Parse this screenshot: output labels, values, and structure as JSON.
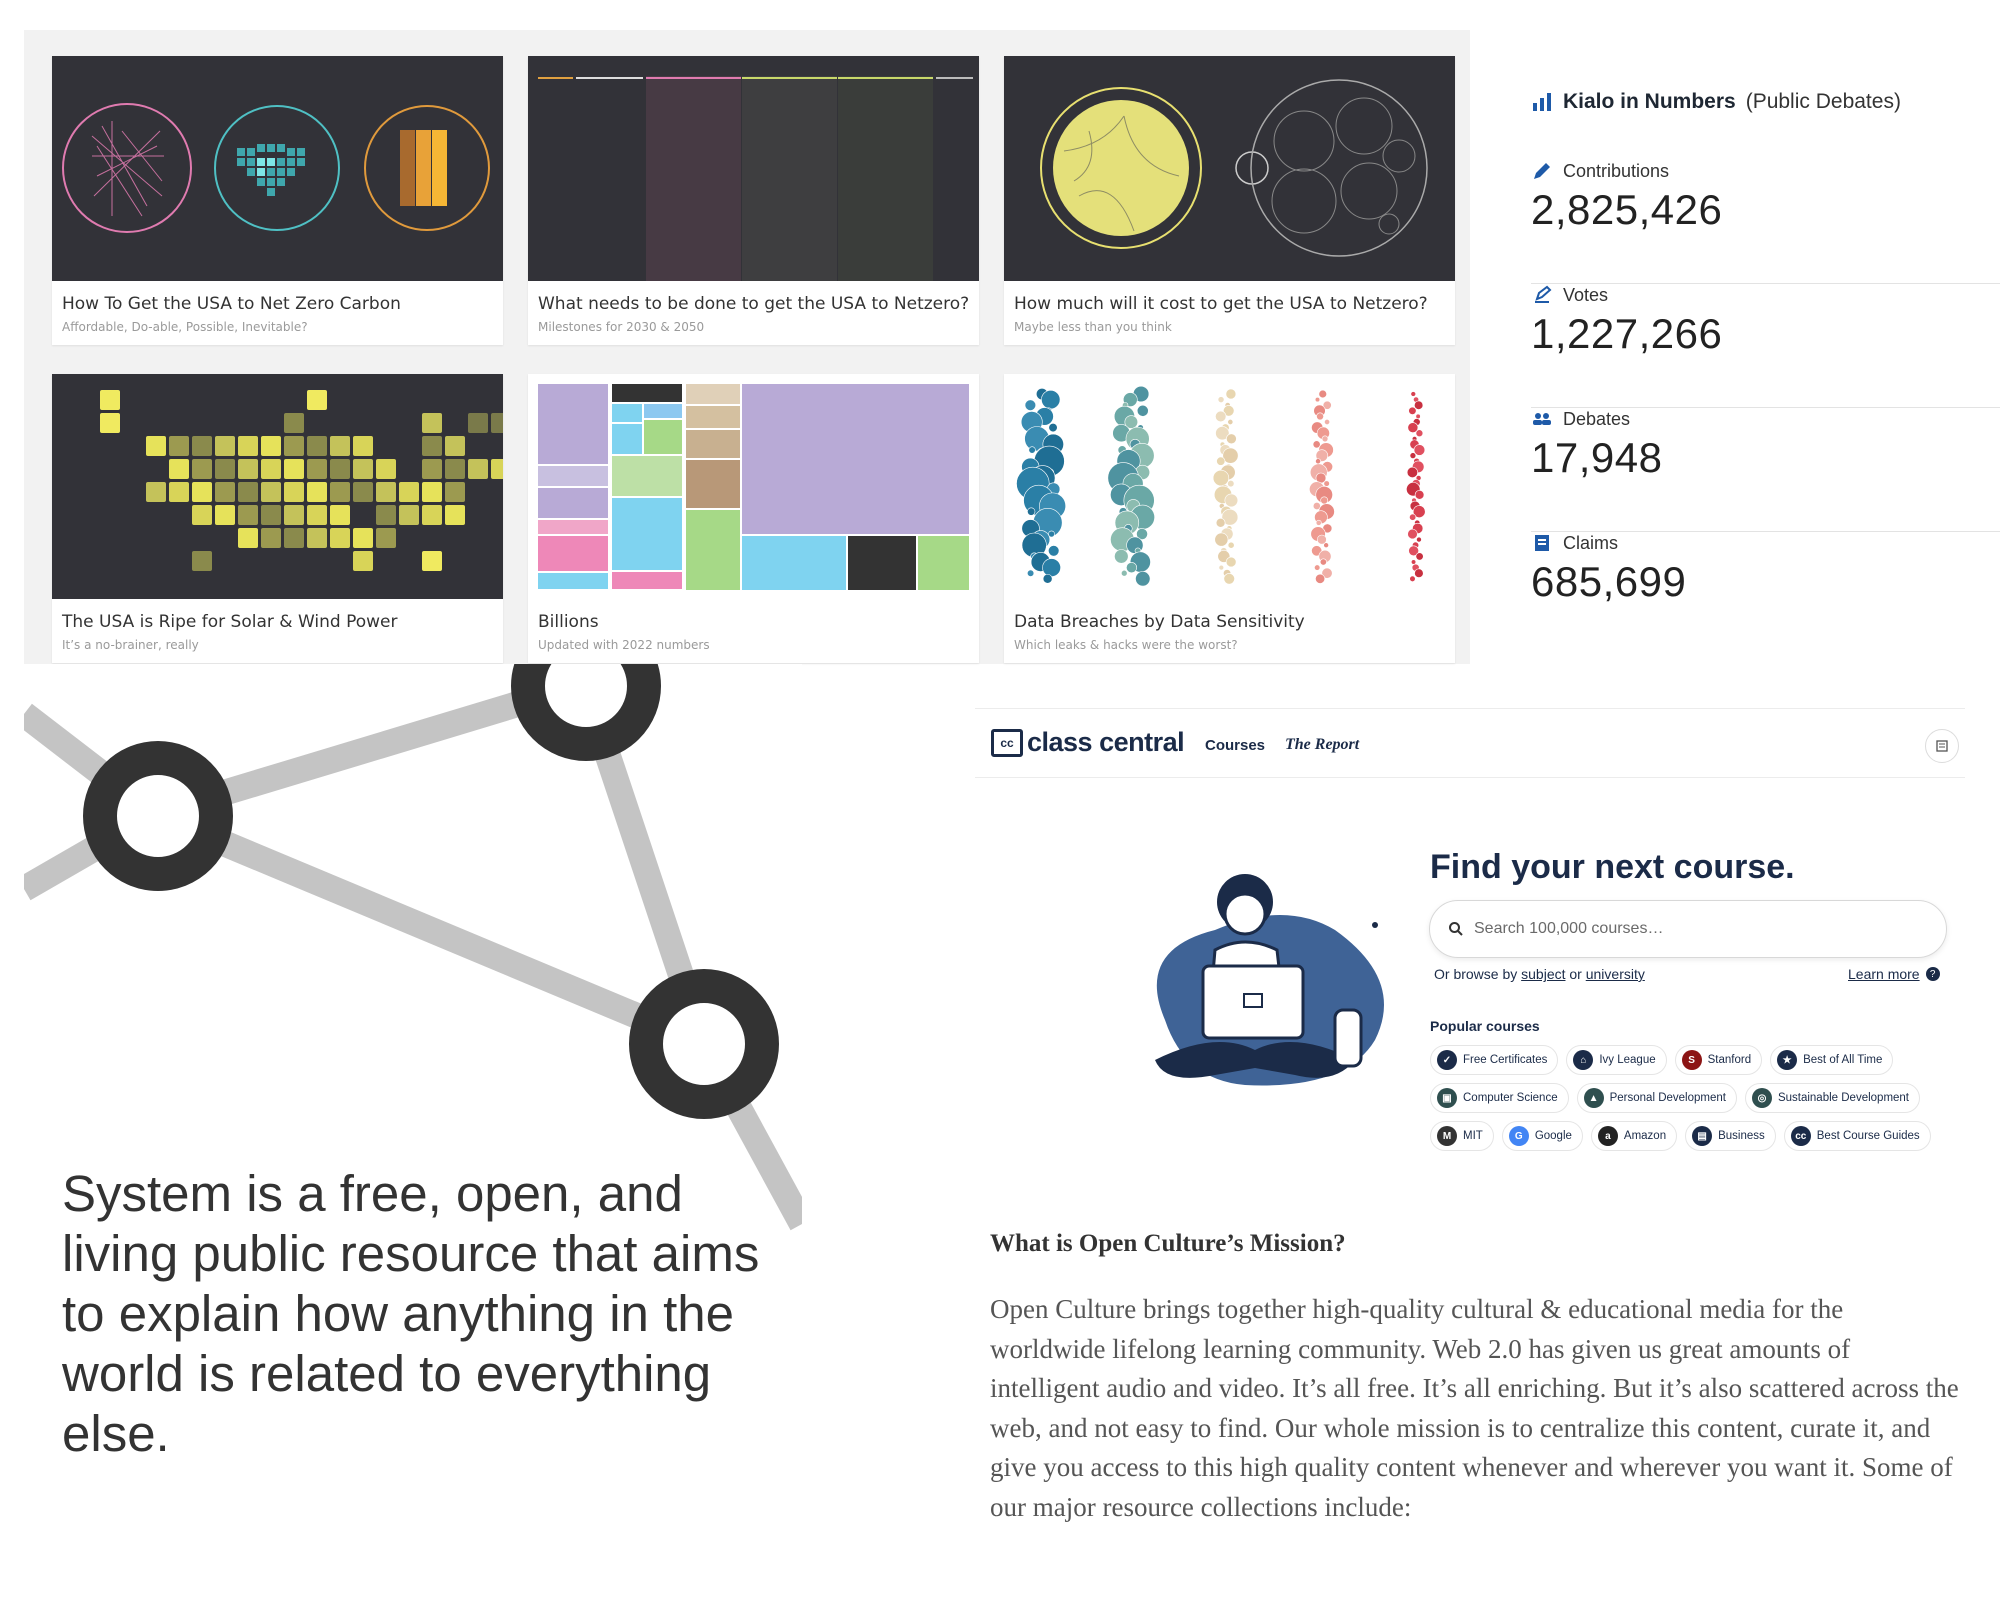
{
  "gallery": {
    "cards": [
      {
        "title": "How To Get the USA to Net Zero Carbon",
        "subtitle": "Affordable, Do-able, Possible, Inevitable?"
      },
      {
        "title": "What needs to be done to get the USA to Netzero?",
        "subtitle": "Milestones for 2030 & 2050"
      },
      {
        "title": "How much will it cost to get the USA to Netzero?",
        "subtitle": "Maybe less than you think"
      },
      {
        "title": "The USA is Ripe for Solar & Wind Power",
        "subtitle": "It’s a no-brainer, really"
      },
      {
        "title": "Billions",
        "subtitle": "Updated with 2022 numbers"
      },
      {
        "title": "Data Breaches by Data Sensitivity",
        "subtitle": "Which leaks & hacks were the worst?"
      }
    ]
  },
  "kialo": {
    "title": "Kialo in Numbers",
    "subtitle": "(Public Debates)",
    "icon": "bar-chart-icon",
    "stats": [
      {
        "label": "Contributions",
        "value": "2,825,426",
        "icon": "pencil-icon"
      },
      {
        "label": "Votes",
        "value": "1,227,266",
        "icon": "vote-icon"
      },
      {
        "label": "Debates",
        "value": "17,948",
        "icon": "people-icon"
      },
      {
        "label": "Claims",
        "value": "685,699",
        "icon": "document-icon"
      }
    ],
    "accent": "#1e5aa8"
  },
  "system": {
    "tagline": "System is a free, open, and living public resource that aims to explain how anything in the world is related to everything else."
  },
  "classcentral": {
    "logo_box": "cc",
    "logo_text": "class central",
    "nav": {
      "courses": "Courses",
      "report": "The Report"
    },
    "heading": "Find your next course.",
    "search_placeholder": "Search 100,000 courses…",
    "browse_prefix": "Or browse by ",
    "browse_link1": "subject",
    "browse_mid": " or ",
    "browse_link2": "university",
    "learn_more": "Learn more",
    "popular_label": "Popular courses",
    "chip_rows": [
      [
        {
          "label": "Free Certificates",
          "icon": "certificate-icon",
          "color": "#1b2b48"
        },
        {
          "label": "Ivy League",
          "icon": "building-icon",
          "color": "#1b2b48"
        },
        {
          "label": "Stanford",
          "icon": "stanford-icon",
          "color": "#8c1515"
        },
        {
          "label": "Best of All Time",
          "icon": "award-icon",
          "color": "#1b2b48"
        }
      ],
      [
        {
          "label": "Computer Science",
          "icon": "computer-icon",
          "color": "#2f4f4f"
        },
        {
          "label": "Personal Development",
          "icon": "growth-icon",
          "color": "#2f4f4f"
        },
        {
          "label": "Sustainable Development",
          "icon": "globe-icon",
          "color": "#2f4f4f"
        }
      ],
      [
        {
          "label": "MIT",
          "icon": "mit-icon",
          "color": "#333333"
        },
        {
          "label": "Google",
          "icon": "google-icon",
          "color": "#4285f4"
        },
        {
          "label": "Amazon",
          "icon": "amazon-icon",
          "color": "#222222"
        },
        {
          "label": "Business",
          "icon": "briefcase-icon",
          "color": "#1b2b48"
        },
        {
          "label": "Best Course Guides",
          "icon": "cc-icon",
          "color": "#1b2b48"
        }
      ]
    ],
    "brand_color": "#1b2b48"
  },
  "openculture": {
    "heading": "What is Open Culture’s Mission?",
    "paragraph": "Open Culture brings together high-quality cultural & educational media for the worldwide lifelong learning community. Web 2.0 has given us great amounts of intelligent audio and video. It’s all free. It’s all enriching. But it’s also scattered across the web, and not easy to find. Our whole mission is to centralize this content, curate it, and give you access to this high quality content whenever and wherever you want it. Some of our major resource collections include:"
  }
}
